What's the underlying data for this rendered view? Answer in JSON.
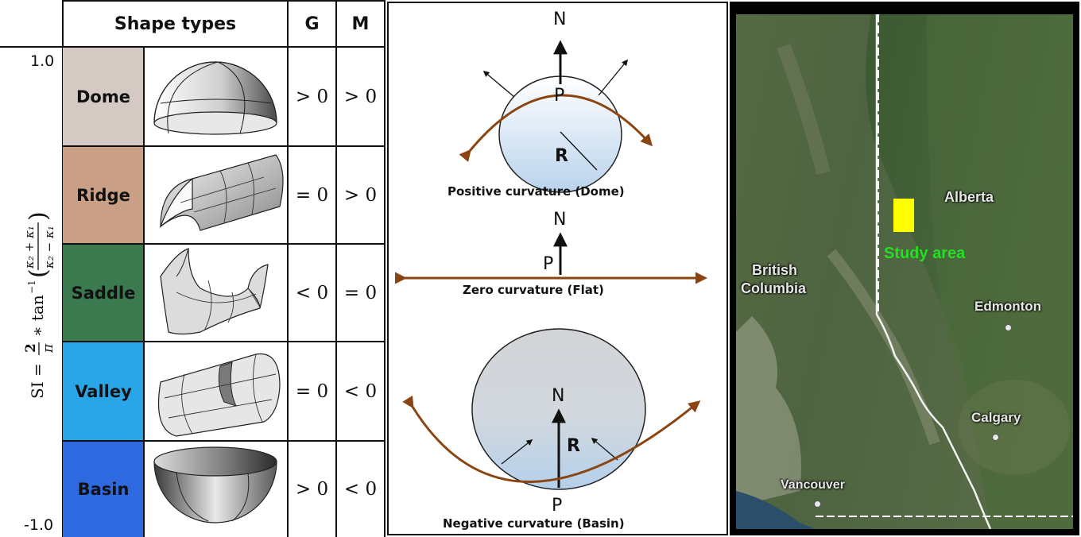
{
  "table": {
    "header": {
      "shape_types": "Shape types",
      "g": "G",
      "m": "M"
    },
    "y_top": "1.0",
    "y_bottom": "-1.0",
    "rows": [
      {
        "name": "Dome",
        "g": "> 0",
        "m": "> 0",
        "color": "#d5c9c3"
      },
      {
        "name": "Ridge",
        "g": "= 0",
        "m": "> 0",
        "color": "#c9a085"
      },
      {
        "name": "Saddle",
        "g": "< 0",
        "m": "= 0",
        "color": "#3b7a4f"
      },
      {
        "name": "Valley",
        "g": "= 0",
        "m": "< 0",
        "color": "#2aa6e8"
      },
      {
        "name": "Basin",
        "g": "> 0",
        "m": "< 0",
        "color": "#2e69e0"
      }
    ]
  },
  "diagram": {
    "positive_caption": "Positive curvature (Dome)",
    "zero_caption": "Zero curvature (Flat)",
    "negative_caption": "Negative curvature (Basin)",
    "normal_label": "N",
    "point_label": "P",
    "radius_label": "R",
    "arrow_color": "#8b4513"
  },
  "map": {
    "labels": {
      "british_columbia_line1": "British",
      "british_columbia_line2": "Columbia",
      "alberta": "Alberta",
      "study_area": "Study area",
      "edmonton": "Edmonton",
      "calgary": "Calgary",
      "vancouver": "Vancouver"
    },
    "study_area_color": "#ffff00",
    "study_label_color": "#22e022"
  }
}
